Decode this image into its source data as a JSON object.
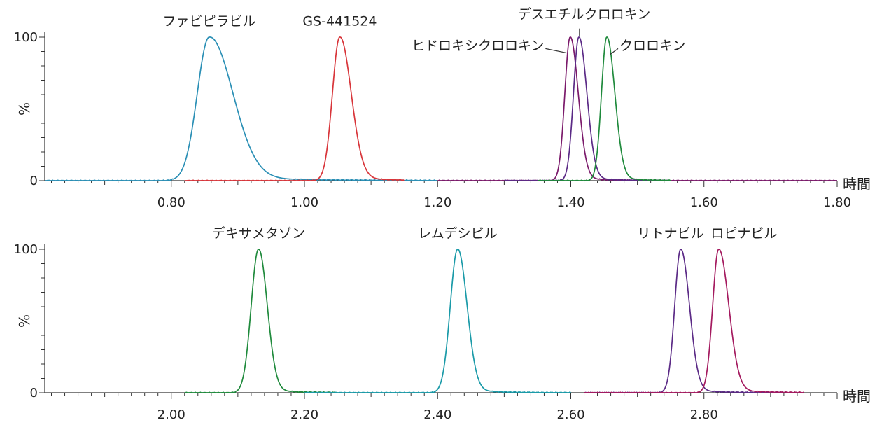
{
  "chart_data": [
    {
      "type": "line",
      "title": "",
      "xlabel": "時間",
      "ylabel": "%",
      "xlim": [
        0.61,
        1.8
      ],
      "ylim": [
        0,
        100
      ],
      "x_ticks": [
        "0.80",
        "1.00",
        "1.20",
        "1.40",
        "1.60",
        "1.80"
      ],
      "y_ticks": [
        "0",
        "100"
      ],
      "grid": false,
      "series": [
        {
          "name": "ファビピラビル",
          "color": "#2a8fb5",
          "peak_x": 0.857,
          "left_width": 0.018,
          "right_width": 0.035,
          "x_start": 0.61,
          "x_end": 1.2
        },
        {
          "name": "GS-441524",
          "color": "#d8353a",
          "peak_x": 1.053,
          "left_width": 0.011,
          "right_width": 0.017,
          "x_start": 0.82,
          "x_end": 1.15
        },
        {
          "name": "ヒドロキシクロロキン",
          "color": "#7b1a6b",
          "peak_x": 1.399,
          "left_width": 0.008,
          "right_width": 0.012,
          "x_start": 1.2,
          "x_end": 1.8
        },
        {
          "name": "デスエチルクロロキン",
          "color": "#5b2a86",
          "peak_x": 1.412,
          "left_width": 0.008,
          "right_width": 0.012,
          "x_start": 1.3,
          "x_end": 1.55
        },
        {
          "name": "クロロキン",
          "color": "#1f8a3c",
          "peak_x": 1.454,
          "left_width": 0.008,
          "right_width": 0.012,
          "x_start": 1.35,
          "x_end": 1.55
        }
      ],
      "labels": [
        {
          "text": "ファビピラビル",
          "x": 0.857,
          "y": 108,
          "anchor": "middle"
        },
        {
          "text": "GS-441524",
          "x": 1.053,
          "y": 108,
          "anchor": "middle"
        },
        {
          "text": "デスエチルクロロキン",
          "x": 1.42,
          "y": 113,
          "anchor": "middle"
        },
        {
          "text": "ヒドロキシクロロキン",
          "x": 1.36,
          "y": 91,
          "anchor": "end"
        },
        {
          "text": "クロロキン",
          "x": 1.473,
          "y": 91,
          "anchor": "start"
        }
      ]
    },
    {
      "type": "line",
      "title": "",
      "xlabel": "時間",
      "ylabel": "%",
      "xlim": [
        1.81,
        3.0
      ],
      "ylim": [
        0,
        100
      ],
      "x_ticks": [
        "2.00",
        "2.20",
        "2.40",
        "2.60",
        "2.80"
      ],
      "y_ticks": [
        "0",
        "100"
      ],
      "grid": false,
      "series": [
        {
          "name": "デキサメタゾン",
          "color": "#1f8a3c",
          "peak_x": 2.131,
          "left_width": 0.011,
          "right_width": 0.013,
          "x_start": 2.02,
          "x_end": 2.25
        },
        {
          "name": "レムデシビル",
          "color": "#1a9aa8",
          "peak_x": 2.43,
          "left_width": 0.011,
          "right_width": 0.014,
          "x_start": 2.2,
          "x_end": 2.6
        },
        {
          "name": "リトナビル",
          "color": "#5b2a86",
          "peak_x": 2.765,
          "left_width": 0.009,
          "right_width": 0.013,
          "x_start": 2.62,
          "x_end": 2.92
        },
        {
          "name": "ロピナビル",
          "color": "#a41a5f",
          "peak_x": 2.822,
          "left_width": 0.009,
          "right_width": 0.015,
          "x_start": 2.62,
          "x_end": 2.95
        }
      ],
      "labels": [
        {
          "text": "デキサメタゾン",
          "x": 2.131,
          "y": 108,
          "anchor": "middle"
        },
        {
          "text": "レムデシビル",
          "x": 2.43,
          "y": 108,
          "anchor": "middle"
        },
        {
          "text": "リトナビル",
          "x": 2.75,
          "y": 108,
          "anchor": "middle"
        },
        {
          "text": "ロピナビル",
          "x": 2.86,
          "y": 108,
          "anchor": "middle"
        }
      ]
    }
  ]
}
